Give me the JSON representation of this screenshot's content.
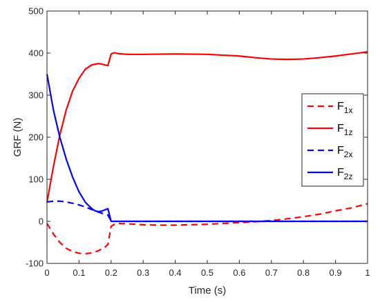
{
  "chart_data": {
    "type": "line",
    "xlabel": "Time (s)",
    "ylabel": "GRF (N)",
    "xlim": [
      0,
      1
    ],
    "ylim": [
      -100,
      500
    ],
    "xticks": [
      "0",
      "0.1",
      "0.2",
      "0.3",
      "0.4",
      "0.5",
      "0.6",
      "0.7",
      "0.8",
      "0.9",
      "1"
    ],
    "yticks": [
      "-100",
      "0",
      "100",
      "200",
      "300",
      "400",
      "500"
    ],
    "grid": false,
    "legend_position": "right",
    "series": [
      {
        "name": "F1x",
        "legend_main": "F",
        "legend_sub": "1x",
        "color": "#ff0000",
        "dash": "dashed",
        "x": [
          0,
          0.02,
          0.04,
          0.06,
          0.08,
          0.1,
          0.12,
          0.14,
          0.16,
          0.18,
          0.19,
          0.2,
          0.21,
          0.22,
          0.25,
          0.3,
          0.35,
          0.4,
          0.45,
          0.5,
          0.55,
          0.6,
          0.65,
          0.7,
          0.75,
          0.8,
          0.85,
          0.9,
          0.95,
          1.0
        ],
        "y": [
          -5,
          -30,
          -50,
          -64,
          -72,
          -76,
          -77,
          -75,
          -70,
          -62,
          -55,
          -12,
          -7,
          -5,
          -6,
          -8,
          -9,
          -9,
          -8,
          -7,
          -5,
          -3,
          -1,
          2,
          6,
          11,
          17,
          25,
          32,
          42
        ]
      },
      {
        "name": "F1z",
        "legend_main": "F",
        "legend_sub": "1z",
        "color": "#ff0000",
        "dash": "solid",
        "x": [
          0,
          0.02,
          0.04,
          0.06,
          0.08,
          0.1,
          0.12,
          0.14,
          0.16,
          0.17,
          0.18,
          0.19,
          0.2,
          0.21,
          0.22,
          0.25,
          0.3,
          0.4,
          0.5,
          0.6,
          0.65,
          0.7,
          0.75,
          0.8,
          0.85,
          0.9,
          0.95,
          1.0
        ],
        "y": [
          45,
          130,
          205,
          265,
          310,
          340,
          362,
          372,
          375,
          374,
          372,
          370,
          398,
          401,
          399,
          397,
          397,
          398,
          397,
          393,
          389,
          386,
          385,
          386,
          389,
          393,
          398,
          403
        ]
      },
      {
        "name": "F2x",
        "legend_main": "F",
        "legend_sub": "2x",
        "color": "#0000ff",
        "dash": "dashed",
        "x": [
          0,
          0.02,
          0.04,
          0.06,
          0.08,
          0.1,
          0.12,
          0.14,
          0.16,
          0.18,
          0.19,
          0.2,
          0.21,
          0.3,
          0.5,
          0.7,
          0.9,
          1.0
        ],
        "y": [
          46,
          48,
          48,
          46,
          43,
          39,
          34,
          28,
          22,
          17,
          15,
          0,
          0,
          0,
          0,
          0,
          0,
          0
        ]
      },
      {
        "name": "F2z",
        "legend_main": "F",
        "legend_sub": "2z",
        "color": "#0000ff",
        "dash": "solid",
        "x": [
          0,
          0.02,
          0.04,
          0.06,
          0.08,
          0.1,
          0.12,
          0.14,
          0.15,
          0.16,
          0.17,
          0.18,
          0.19,
          0.2,
          0.21,
          0.3,
          0.5,
          0.7,
          0.9,
          1.0
        ],
        "y": [
          350,
          265,
          200,
          148,
          105,
          70,
          45,
          30,
          25,
          23,
          24,
          27,
          30,
          0,
          0,
          0,
          0,
          0,
          0,
          0
        ]
      }
    ]
  }
}
